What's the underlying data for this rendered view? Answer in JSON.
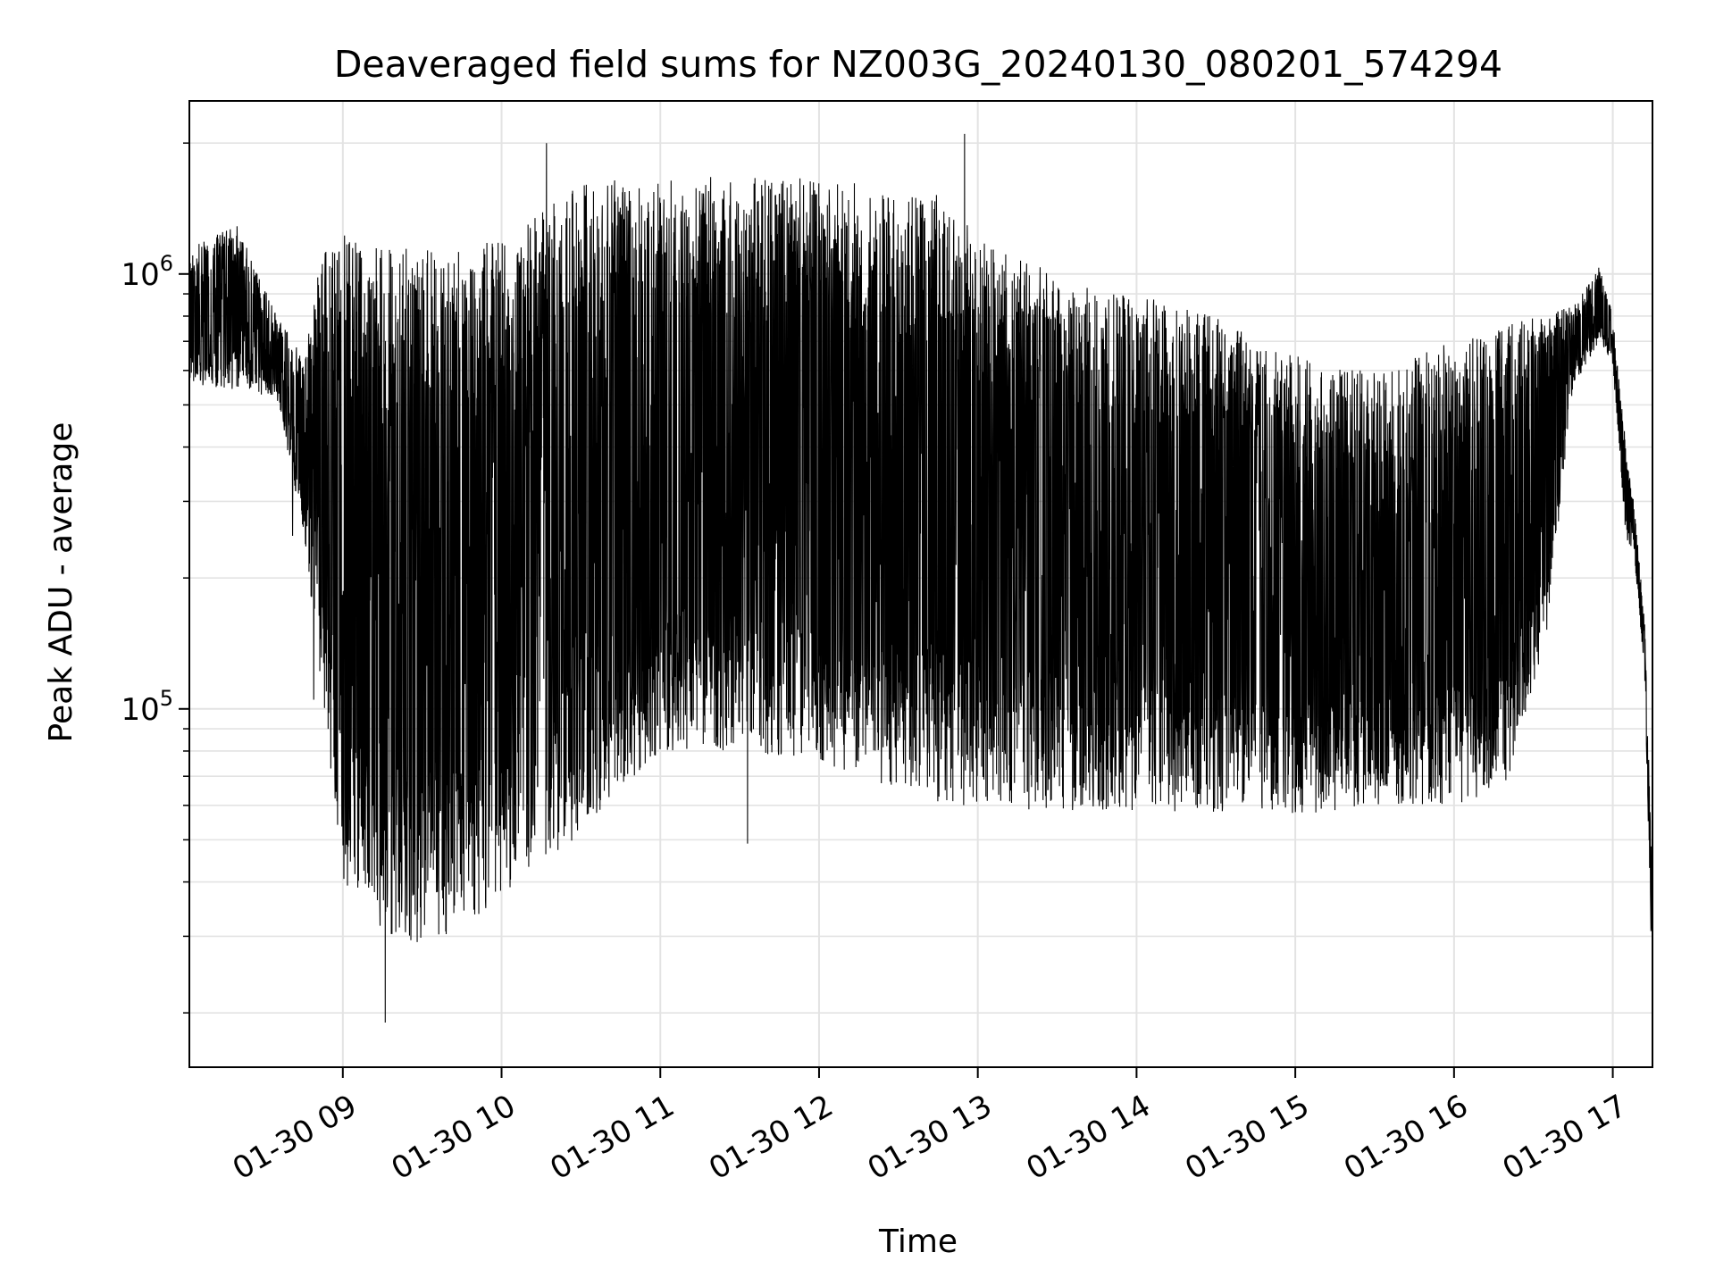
{
  "chart_data": {
    "type": "line",
    "title": "Deaveraged field sums for NZ003G_20240130_080201_574294",
    "xlabel": "Time",
    "ylabel": "Peak ADU - average",
    "yscale": "log",
    "ylim": [
      15000,
      2500000
    ],
    "xlim": [
      "2024-01-30 08:02",
      "2024-01-30 17:15"
    ],
    "x_tick_labels": [
      "01-30 09",
      "01-30 10",
      "01-30 11",
      "01-30 12",
      "01-30 13",
      "01-30 14",
      "01-30 15",
      "01-30 16",
      "01-30 17"
    ],
    "x_ticks": [
      "2024-01-30 09:00",
      "2024-01-30 10:00",
      "2024-01-30 11:00",
      "2024-01-30 12:00",
      "2024-01-30 13:00",
      "2024-01-30 14:00",
      "2024-01-30 15:00",
      "2024-01-30 16:00",
      "2024-01-30 17:00"
    ],
    "y_ticks": [
      {
        "value": 100000,
        "base": "10",
        "exp": "5"
      },
      {
        "value": 1000000,
        "base": "10",
        "exp": "6"
      }
    ],
    "grid": true,
    "series_color": "#000000",
    "envelope": [
      {
        "t": "2024-01-30 08:02",
        "upper": 1150000,
        "lower": 560000
      },
      {
        "t": "2024-01-30 08:20",
        "upper": 1300000,
        "lower": 540000
      },
      {
        "t": "2024-01-30 08:35",
        "upper": 800000,
        "lower": 520000
      },
      {
        "t": "2024-01-30 08:45",
        "upper": 650000,
        "lower": 260000
      },
      {
        "t": "2024-01-30 08:52",
        "upper": 1100000,
        "lower": 110000
      },
      {
        "t": "2024-01-30 09:00",
        "upper": 1250000,
        "lower": 40000
      },
      {
        "t": "2024-01-30 09:15",
        "upper": 1200000,
        "lower": 30000
      },
      {
        "t": "2024-01-30 09:30",
        "upper": 1150000,
        "lower": 28000
      },
      {
        "t": "2024-01-30 09:45",
        "upper": 1200000,
        "lower": 31000
      },
      {
        "t": "2024-01-30 10:00",
        "upper": 1200000,
        "lower": 36000
      },
      {
        "t": "2024-01-30 10:15",
        "upper": 1400000,
        "lower": 45000
      },
      {
        "t": "2024-01-30 10:30",
        "upper": 1600000,
        "lower": 50000
      },
      {
        "t": "2024-01-30 10:45",
        "upper": 1650000,
        "lower": 65000
      },
      {
        "t": "2024-01-30 11:00",
        "upper": 1650000,
        "lower": 80000
      },
      {
        "t": "2024-01-30 11:30",
        "upper": 1700000,
        "lower": 80000
      },
      {
        "t": "2024-01-30 12:00",
        "upper": 1650000,
        "lower": 75000
      },
      {
        "t": "2024-01-30 12:30",
        "upper": 1600000,
        "lower": 65000
      },
      {
        "t": "2024-01-30 12:50",
        "upper": 1500000,
        "lower": 60000
      },
      {
        "t": "2024-01-30 13:00",
        "upper": 1200000,
        "lower": 60000
      },
      {
        "t": "2024-01-30 13:30",
        "upper": 1000000,
        "lower": 58000
      },
      {
        "t": "2024-01-30 14:00",
        "upper": 900000,
        "lower": 58000
      },
      {
        "t": "2024-01-30 14:30",
        "upper": 800000,
        "lower": 57000
      },
      {
        "t": "2024-01-30 15:00",
        "upper": 650000,
        "lower": 57000
      },
      {
        "t": "2024-01-30 15:30",
        "upper": 600000,
        "lower": 60000
      },
      {
        "t": "2024-01-30 16:00",
        "upper": 700000,
        "lower": 60000
      },
      {
        "t": "2024-01-30 16:20",
        "upper": 780000,
        "lower": 65000
      },
      {
        "t": "2024-01-30 16:35",
        "upper": 800000,
        "lower": 150000
      },
      {
        "t": "2024-01-30 16:45",
        "upper": 850000,
        "lower": 550000
      },
      {
        "t": "2024-01-30 16:55",
        "upper": 1050000,
        "lower": 700000
      },
      {
        "t": "2024-01-30 17:00",
        "upper": 800000,
        "lower": 620000
      },
      {
        "t": "2024-01-30 17:05",
        "upper": 400000,
        "lower": 240000
      },
      {
        "t": "2024-01-30 17:08",
        "upper": 300000,
        "lower": 230000
      },
      {
        "t": "2024-01-30 17:12",
        "upper": 160000,
        "lower": 120000
      },
      {
        "t": "2024-01-30 17:15",
        "upper": 40000,
        "lower": 22000
      }
    ],
    "notable_points": [
      {
        "t": "2024-01-30 10:17",
        "y": 2000000
      },
      {
        "t": "2024-01-30 12:55",
        "y": 2100000
      },
      {
        "t": "2024-01-30 09:16",
        "y": 19000
      },
      {
        "t": "2024-01-30 08:41",
        "y": 250000
      },
      {
        "t": "2024-01-30 08:49",
        "y": 105000
      },
      {
        "t": "2024-01-30 11:33",
        "y": 49000
      }
    ]
  }
}
